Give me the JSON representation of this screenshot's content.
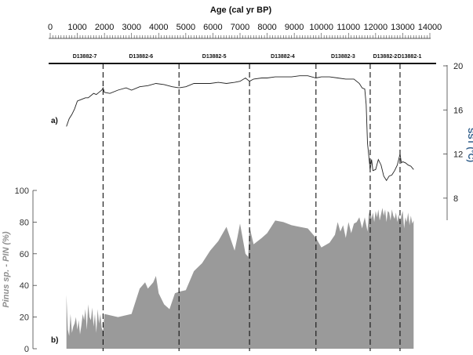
{
  "chart_data": [
    {
      "type": "line",
      "xlabel": "Age (cal yr BP)",
      "ylabel": "SST (°C)",
      "panel_label": "a)",
      "xlim": [
        0,
        14000
      ],
      "ylim": [
        6,
        20
      ],
      "x_ticks": [
        0,
        1000,
        2000,
        3000,
        4000,
        5000,
        6000,
        7000,
        8000,
        9000,
        10000,
        11000,
        12000,
        13000,
        14000
      ],
      "y_ticks": [
        8,
        12,
        16,
        20
      ],
      "cores": [
        {
          "name": "D13882-7",
          "x_from": 600,
          "x_to": 1950
        },
        {
          "name": "D13882-6",
          "x_from": 1950,
          "x_to": 4750
        },
        {
          "name": "D13882-5",
          "x_from": 4750,
          "x_to": 7350
        },
        {
          "name": "D13882-4",
          "x_from": 7350,
          "x_to": 9800
        },
        {
          "name": "D13882-3",
          "x_from": 9800,
          "x_to": 11800
        },
        {
          "name": "D13882-2",
          "x_from": 11800,
          "x_to": 12900
        },
        {
          "name": "D13882-1",
          "x_from": 12900,
          "x_to": 13600
        }
      ],
      "boundaries": [
        1950,
        4750,
        7350,
        9800,
        11800,
        12900
      ],
      "series": [
        {
          "x": [
            600,
            700,
            800,
            900,
            1000,
            1100,
            1200,
            1300,
            1400,
            1500,
            1600,
            1700,
            1800,
            1900,
            1950,
            2000,
            2200,
            2500,
            2800,
            3000,
            3300,
            3600,
            3900,
            4200,
            4500,
            4750,
            5000,
            5300,
            5600,
            5900,
            6200,
            6500,
            6800,
            7000,
            7200,
            7350,
            7500,
            7800,
            8000,
            8300,
            8600,
            8900,
            9200,
            9500,
            9800,
            10000,
            10300,
            10600,
            10900,
            11200,
            11400,
            11500,
            11600,
            11650,
            11700,
            11750,
            11800,
            11850,
            11900,
            12000,
            12100,
            12200,
            12300,
            12400,
            12500,
            12600,
            12700,
            12800,
            12900,
            12950,
            13000,
            13100,
            13200,
            13300,
            13400
          ],
          "values": [
            14.5,
            15.2,
            15.6,
            16.1,
            16.8,
            16.9,
            17.0,
            17.1,
            17.1,
            17.3,
            17.5,
            17.4,
            17.6,
            17.8,
            18.0,
            17.6,
            17.5,
            17.8,
            18.0,
            17.8,
            18.1,
            18.2,
            18.4,
            18.3,
            18.1,
            18.0,
            18.1,
            18.4,
            18.4,
            18.4,
            18.5,
            18.4,
            18.5,
            18.6,
            18.9,
            18.6,
            18.8,
            18.9,
            18.9,
            19.0,
            19.0,
            19.0,
            19.1,
            19.1,
            18.9,
            19.0,
            19.0,
            18.9,
            18.8,
            18.8,
            18.4,
            18.0,
            17.9,
            16.5,
            13.0,
            11.8,
            10.6,
            11.5,
            10.5,
            10.6,
            11.5,
            11.0,
            10.0,
            9.6,
            10.0,
            10.1,
            10.5,
            11.0,
            12.0,
            11.2,
            11.3,
            11.2,
            11.0,
            10.9,
            10.6
          ]
        }
      ]
    },
    {
      "type": "area",
      "ylabel": "Pinus sp. - PIN (%)",
      "panel_label": "b)",
      "xlim": [
        0,
        14000
      ],
      "ylim": [
        0,
        100
      ],
      "y_ticks": [
        0,
        20,
        40,
        60,
        80,
        100
      ],
      "color": "#9a9a9a",
      "series": [
        {
          "x": [
            600,
            650,
            700,
            750,
            800,
            850,
            900,
            950,
            1000,
            1050,
            1100,
            1150,
            1200,
            1250,
            1300,
            1350,
            1400,
            1450,
            1500,
            1550,
            1600,
            1650,
            1700,
            1750,
            1800,
            1850,
            1900,
            1950,
            2000,
            2500,
            3000,
            3300,
            3500,
            3600,
            3800,
            3900,
            4000,
            4200,
            4400,
            4600,
            4750,
            5000,
            5300,
            5600,
            5900,
            6200,
            6500,
            6800,
            6900,
            7000,
            7200,
            7300,
            7350,
            7500,
            7800,
            8000,
            8300,
            8600,
            8900,
            9200,
            9500,
            9800,
            10000,
            10300,
            10500,
            10600,
            10700,
            10800,
            10900,
            11000,
            11100,
            11200,
            11300,
            11400,
            11500,
            11600,
            11700,
            11750,
            11800,
            11850,
            11900,
            11950,
            12000,
            12050,
            12100,
            12150,
            12200,
            12250,
            12300,
            12350,
            12400,
            12450,
            12500,
            12550,
            12600,
            12650,
            12700,
            12750,
            12800,
            12850,
            12900,
            12950,
            13000,
            13050,
            13100,
            13150,
            13200,
            13250,
            13300,
            13350,
            13400
          ],
          "values": [
            34,
            12,
            8,
            22,
            10,
            14,
            16,
            20,
            12,
            18,
            9,
            15,
            22,
            18,
            25,
            12,
            28,
            20,
            18,
            26,
            14,
            22,
            10,
            25,
            16,
            22,
            13,
            11,
            22,
            20,
            22,
            38,
            42,
            38,
            42,
            46,
            35,
            28,
            25,
            35,
            36,
            37,
            49,
            54,
            62,
            68,
            77,
            62,
            70,
            79,
            60,
            58,
            77,
            66,
            70,
            73,
            81,
            80,
            78,
            77,
            76,
            70,
            64,
            67,
            72,
            80,
            74,
            78,
            70,
            80,
            73,
            79,
            80,
            83,
            76,
            83,
            74,
            85,
            88,
            82,
            86,
            80,
            87,
            83,
            88,
            81,
            85,
            89,
            84,
            88,
            80,
            87,
            86,
            81,
            88,
            84,
            82,
            86,
            80,
            85,
            79,
            84,
            87,
            76,
            83,
            80,
            86,
            78,
            84,
            79,
            81
          ]
        }
      ]
    }
  ]
}
